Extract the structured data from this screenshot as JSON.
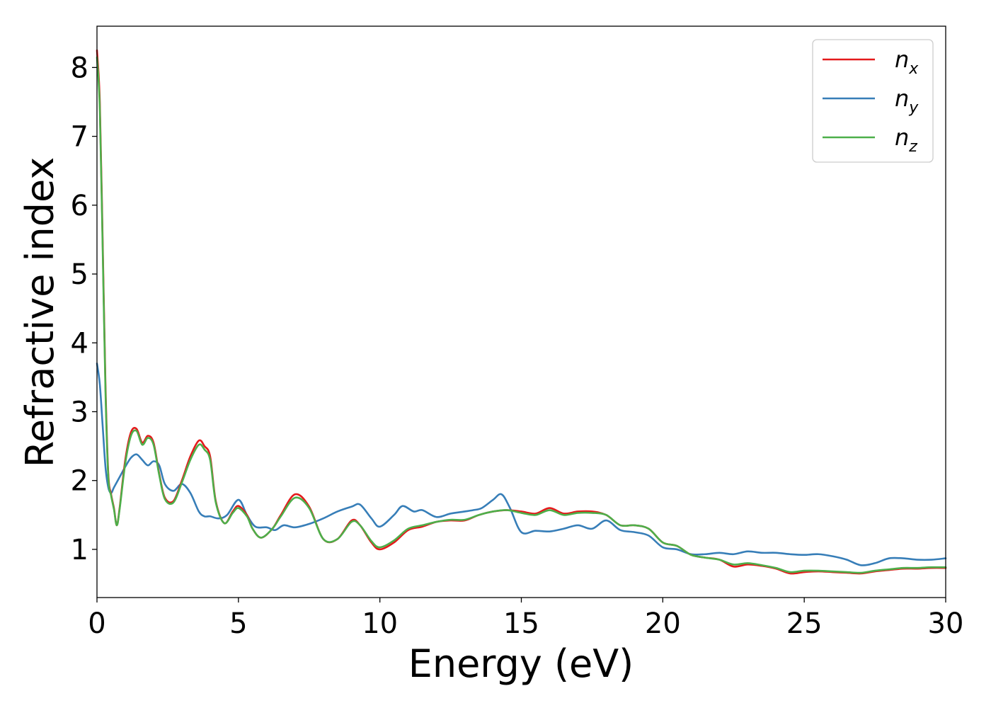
{
  "chart_data": {
    "type": "line",
    "title": "",
    "xlabel": "Energy (eV)",
    "ylabel": "Refractive index",
    "xlim": [
      0,
      30
    ],
    "ylim": [
      0.3,
      8.6
    ],
    "xticks": [
      0,
      5,
      10,
      15,
      20,
      25,
      30
    ],
    "yticks": [
      1,
      2,
      3,
      4,
      5,
      6,
      7,
      8
    ],
    "grid": false,
    "legend_position": "top-right",
    "series": [
      {
        "name": "n",
        "subscript": "x",
        "color": "#e41a1c",
        "x": [
          0,
          0.1,
          0.2,
          0.3,
          0.4,
          0.5,
          0.6,
          0.7,
          0.8,
          1.0,
          1.2,
          1.4,
          1.6,
          1.8,
          2.0,
          2.2,
          2.4,
          2.7,
          3.0,
          3.3,
          3.6,
          3.8,
          4.0,
          4.2,
          4.5,
          4.8,
          5.0,
          5.3,
          5.5,
          5.8,
          6.2,
          6.5,
          7.0,
          7.5,
          8.0,
          8.5,
          9.0,
          9.3,
          9.7,
          10.0,
          10.5,
          11.0,
          11.5,
          12.0,
          12.5,
          13.0,
          13.5,
          14.0,
          14.5,
          15.0,
          15.5,
          16.0,
          16.5,
          17.0,
          17.5,
          18.0,
          18.5,
          19.0,
          19.5,
          20.0,
          20.5,
          21.0,
          21.5,
          22.0,
          22.5,
          23.0,
          23.5,
          24.0,
          24.5,
          25.0,
          25.5,
          26.0,
          26.5,
          27.0,
          27.5,
          28.0,
          28.5,
          29.0,
          29.5,
          30.0
        ],
        "values": [
          8.25,
          7.5,
          5.5,
          3.4,
          2.1,
          1.8,
          1.6,
          1.35,
          1.6,
          2.3,
          2.7,
          2.75,
          2.55,
          2.65,
          2.55,
          2.1,
          1.75,
          1.7,
          2.0,
          2.35,
          2.58,
          2.5,
          2.35,
          1.7,
          1.38,
          1.55,
          1.63,
          1.5,
          1.3,
          1.17,
          1.3,
          1.5,
          1.8,
          1.62,
          1.15,
          1.15,
          1.42,
          1.35,
          1.1,
          1.0,
          1.1,
          1.28,
          1.33,
          1.4,
          1.42,
          1.42,
          1.5,
          1.55,
          1.57,
          1.55,
          1.52,
          1.6,
          1.52,
          1.55,
          1.55,
          1.5,
          1.35,
          1.35,
          1.3,
          1.1,
          1.05,
          0.92,
          0.88,
          0.85,
          0.75,
          0.78,
          0.76,
          0.72,
          0.65,
          0.67,
          0.68,
          0.67,
          0.66,
          0.65,
          0.68,
          0.7,
          0.72,
          0.72,
          0.73,
          0.73
        ]
      },
      {
        "name": "n",
        "subscript": "y",
        "color": "#377eb8",
        "x": [
          0,
          0.1,
          0.2,
          0.3,
          0.4,
          0.5,
          0.6,
          0.8,
          1.0,
          1.2,
          1.4,
          1.6,
          1.8,
          2.0,
          2.2,
          2.4,
          2.7,
          3.0,
          3.3,
          3.6,
          3.8,
          4.0,
          4.3,
          4.6,
          5.0,
          5.3,
          5.6,
          6.0,
          6.3,
          6.6,
          7.0,
          7.5,
          8.0,
          8.5,
          9.0,
          9.3,
          9.7,
          10.0,
          10.5,
          10.8,
          11.2,
          11.5,
          12.0,
          12.5,
          13.0,
          13.3,
          13.6,
          14.0,
          14.3,
          14.6,
          15.0,
          15.5,
          16.0,
          16.5,
          17.0,
          17.5,
          18.0,
          18.5,
          19.0,
          19.5,
          20.0,
          20.5,
          21.0,
          21.5,
          22.0,
          22.5,
          23.0,
          23.5,
          24.0,
          24.5,
          25.0,
          25.5,
          26.0,
          26.5,
          27.0,
          27.5,
          28.0,
          28.5,
          29.0,
          29.5,
          30.0
        ],
        "values": [
          3.7,
          3.4,
          2.8,
          2.2,
          1.9,
          1.82,
          1.9,
          2.05,
          2.2,
          2.33,
          2.38,
          2.3,
          2.22,
          2.28,
          2.22,
          1.95,
          1.85,
          1.95,
          1.82,
          1.55,
          1.48,
          1.48,
          1.45,
          1.5,
          1.72,
          1.5,
          1.33,
          1.32,
          1.28,
          1.35,
          1.32,
          1.37,
          1.45,
          1.55,
          1.62,
          1.65,
          1.45,
          1.33,
          1.5,
          1.63,
          1.55,
          1.57,
          1.47,
          1.52,
          1.55,
          1.57,
          1.6,
          1.72,
          1.8,
          1.6,
          1.25,
          1.27,
          1.26,
          1.3,
          1.35,
          1.3,
          1.42,
          1.28,
          1.25,
          1.2,
          1.03,
          1.0,
          0.93,
          0.93,
          0.95,
          0.93,
          0.97,
          0.95,
          0.95,
          0.93,
          0.92,
          0.93,
          0.9,
          0.85,
          0.77,
          0.8,
          0.87,
          0.87,
          0.85,
          0.85,
          0.87
        ]
      },
      {
        "name": "n",
        "subscript": "z",
        "color": "#4daf4a",
        "x": [
          0,
          0.1,
          0.2,
          0.3,
          0.4,
          0.5,
          0.6,
          0.7,
          0.8,
          1.0,
          1.2,
          1.4,
          1.6,
          1.8,
          2.0,
          2.2,
          2.4,
          2.7,
          3.0,
          3.3,
          3.6,
          3.8,
          4.0,
          4.2,
          4.5,
          4.8,
          5.0,
          5.3,
          5.5,
          5.8,
          6.2,
          6.5,
          7.0,
          7.5,
          8.0,
          8.5,
          9.0,
          9.3,
          9.7,
          10.0,
          10.5,
          11.0,
          11.5,
          12.0,
          12.5,
          13.0,
          13.5,
          14.0,
          14.5,
          15.0,
          15.5,
          16.0,
          16.5,
          17.0,
          17.5,
          18.0,
          18.5,
          19.0,
          19.5,
          20.0,
          20.5,
          21.0,
          21.5,
          22.0,
          22.5,
          23.0,
          23.5,
          24.0,
          24.5,
          25.0,
          25.5,
          26.0,
          26.5,
          27.0,
          27.5,
          28.0,
          28.5,
          29.0,
          29.5,
          30.0
        ],
        "values": [
          8.15,
          7.4,
          5.4,
          3.3,
          2.05,
          1.78,
          1.58,
          1.35,
          1.58,
          2.25,
          2.65,
          2.72,
          2.52,
          2.62,
          2.52,
          2.08,
          1.73,
          1.68,
          1.97,
          2.3,
          2.52,
          2.45,
          2.3,
          1.68,
          1.38,
          1.53,
          1.6,
          1.48,
          1.3,
          1.17,
          1.3,
          1.48,
          1.75,
          1.6,
          1.15,
          1.15,
          1.4,
          1.35,
          1.12,
          1.03,
          1.13,
          1.3,
          1.35,
          1.4,
          1.43,
          1.43,
          1.5,
          1.55,
          1.57,
          1.53,
          1.5,
          1.57,
          1.5,
          1.53,
          1.53,
          1.5,
          1.35,
          1.35,
          1.3,
          1.1,
          1.05,
          0.92,
          0.88,
          0.85,
          0.78,
          0.8,
          0.77,
          0.73,
          0.67,
          0.69,
          0.69,
          0.68,
          0.67,
          0.66,
          0.69,
          0.71,
          0.73,
          0.73,
          0.74,
          0.74
        ]
      }
    ]
  }
}
